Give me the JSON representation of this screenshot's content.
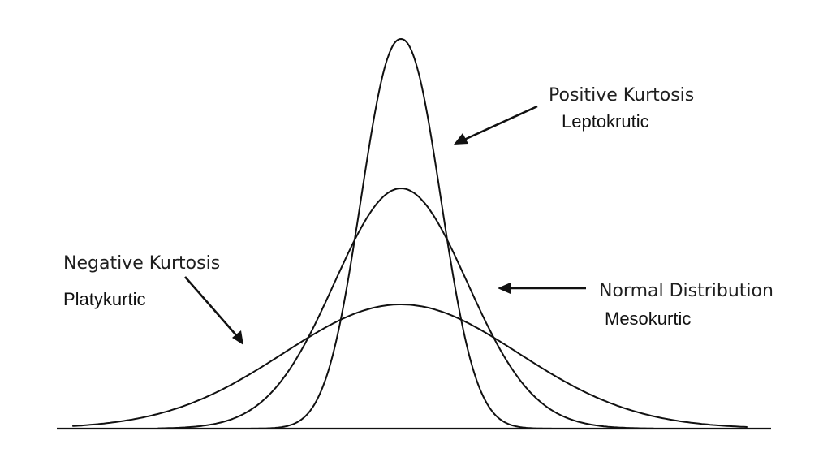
{
  "labels": {
    "positive": {
      "title": "Positive Kurtosis",
      "subtitle": "Leptokrutic"
    },
    "normal": {
      "title": "Normal Distribution",
      "subtitle": "Mesokurtic"
    },
    "negative": {
      "title": "Negative Kurtosis",
      "subtitle": "Platykurtic"
    }
  },
  "curves": [
    {
      "id": "leptokurtic",
      "shape": "tall-narrow-peak"
    },
    {
      "id": "mesokurtic",
      "shape": "normal-bell"
    },
    {
      "id": "platykurtic",
      "shape": "low-wide-bell"
    }
  ],
  "colors": {
    "ink": "#111111",
    "background": "#ffffff"
  }
}
